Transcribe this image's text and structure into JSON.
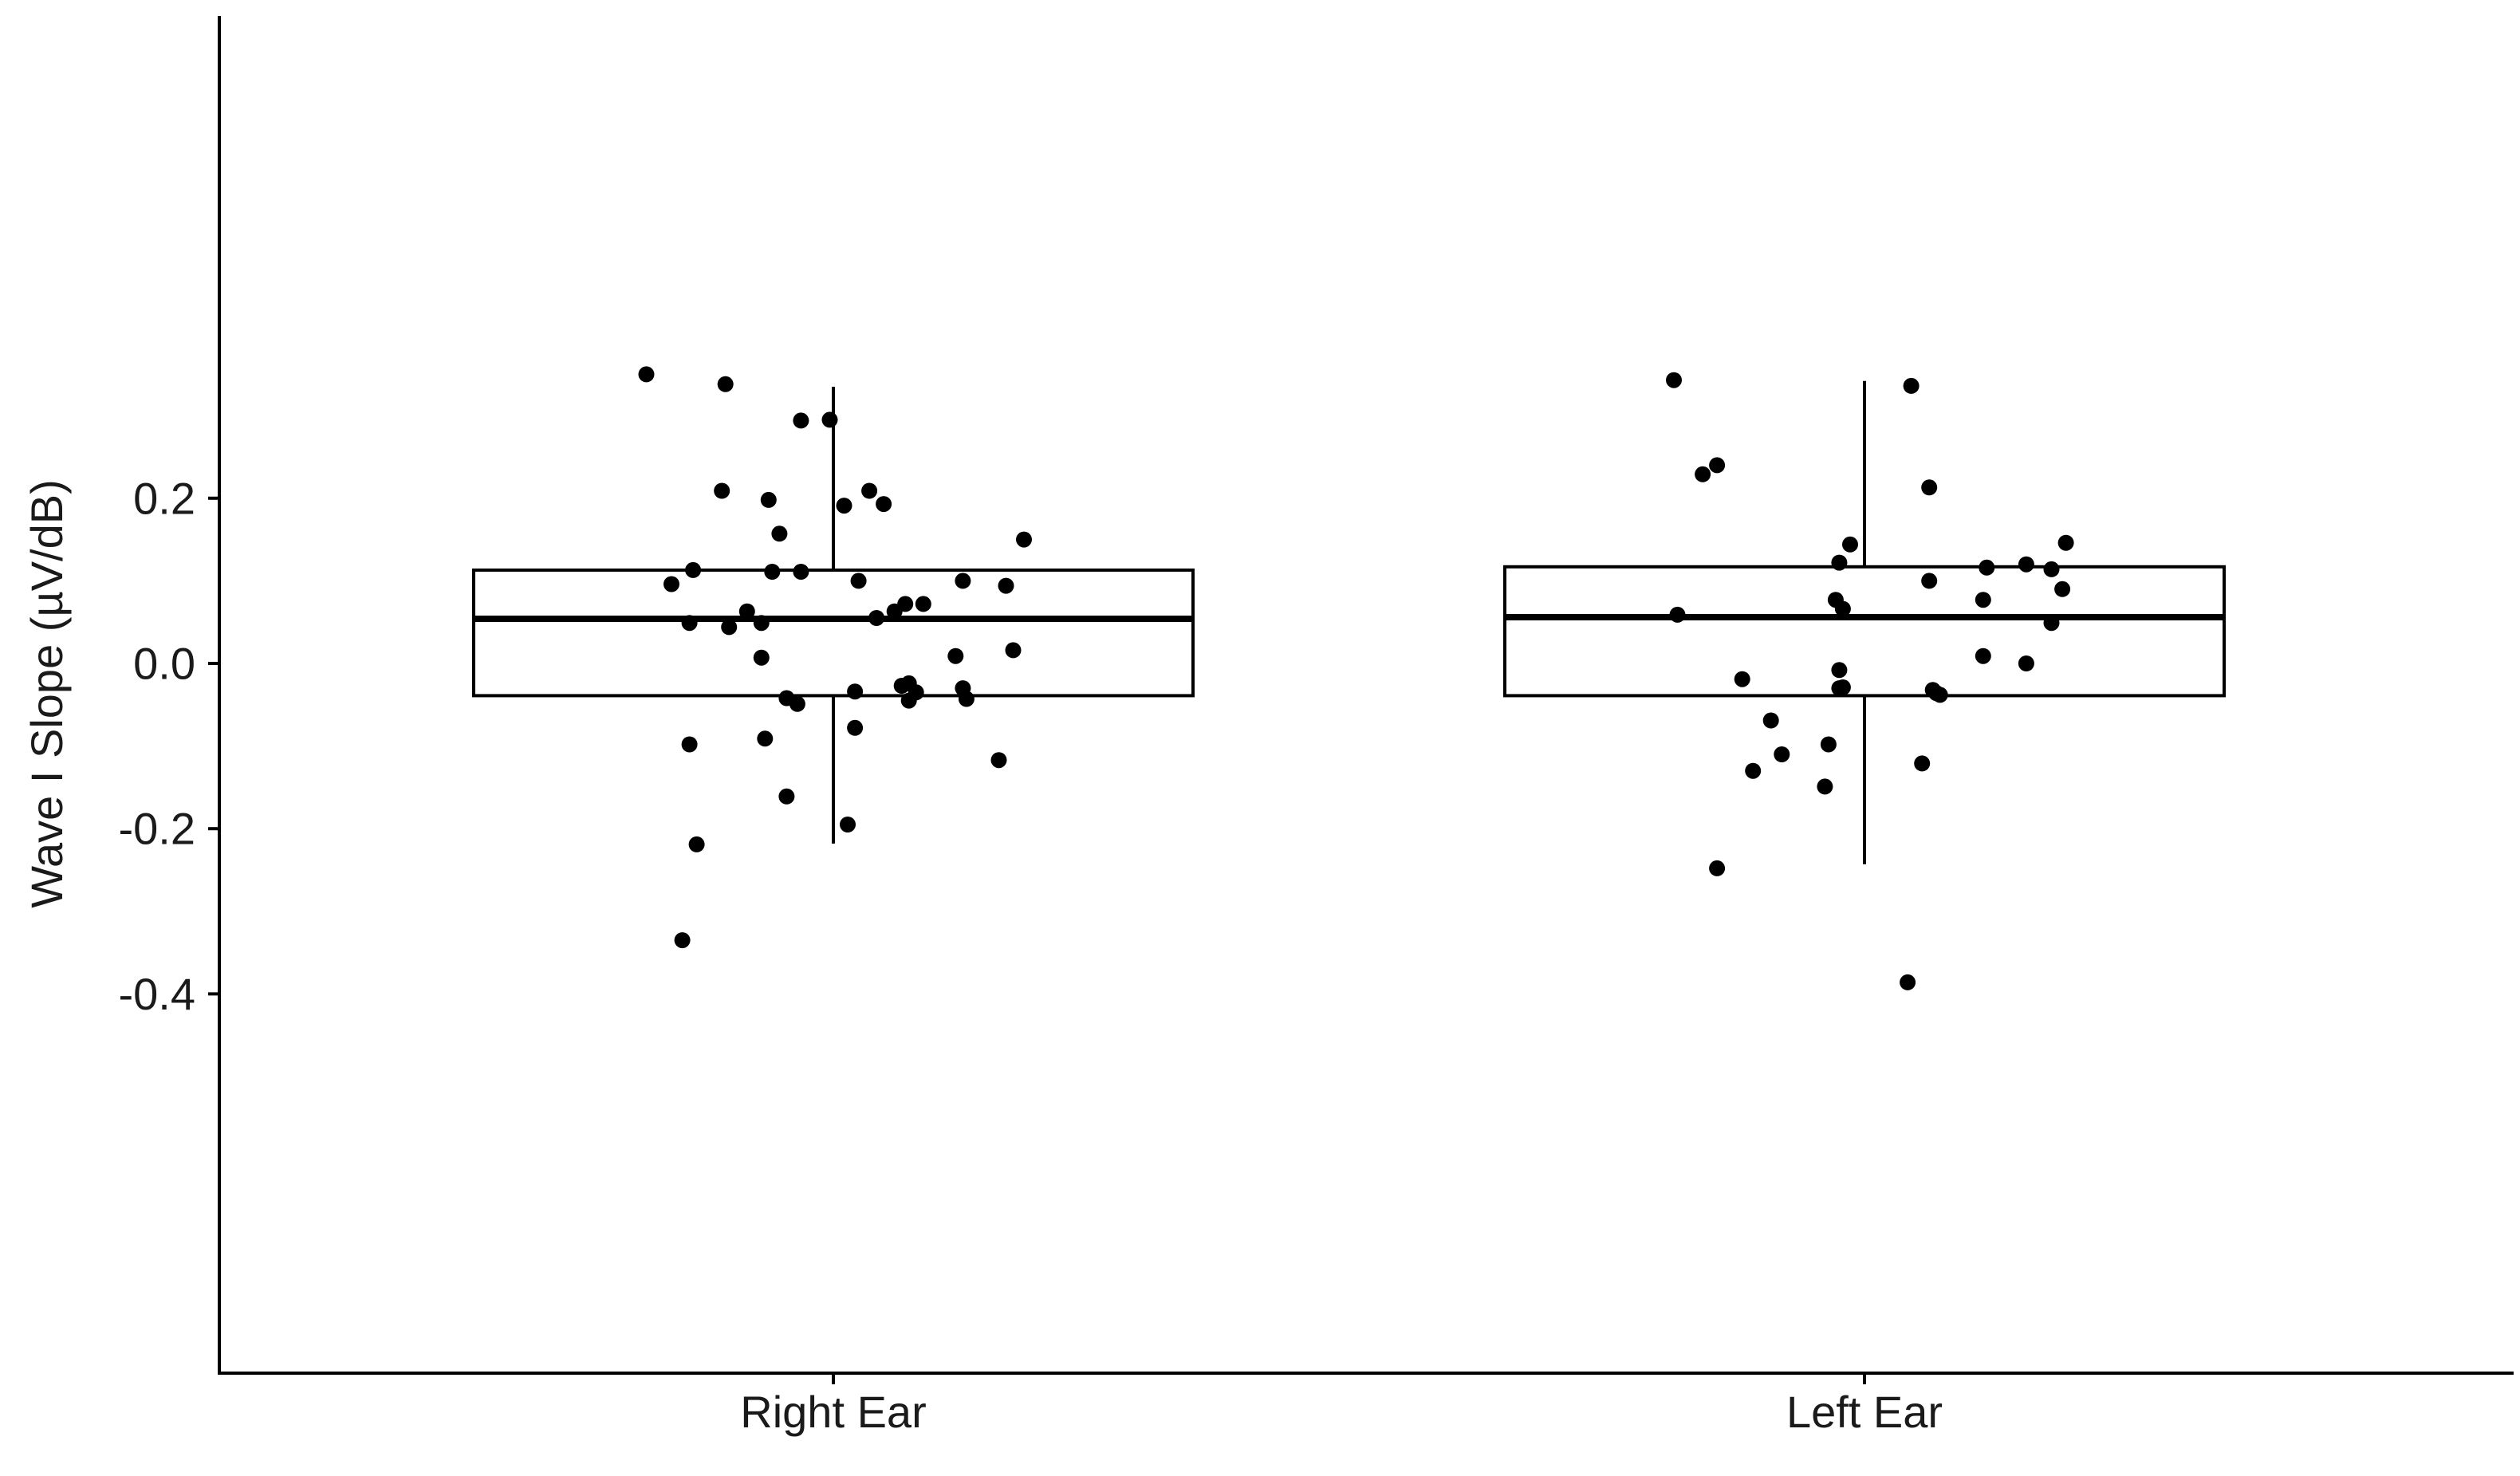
{
  "chart_data": {
    "type": "box",
    "title": "",
    "xlabel": "",
    "ylabel": "Wave I Slope (µV/dB)",
    "categories": [
      "Right Ear",
      "Left Ear"
    ],
    "ylim": [
      -0.425,
      0.385
    ],
    "yticks": [
      {
        "value": 0.2,
        "label": "0.2"
      },
      {
        "value": 0.0,
        "label": "0.0"
      },
      {
        "value": -0.2,
        "label": "-0.2"
      },
      {
        "value": -0.4,
        "label": "-0.4"
      }
    ],
    "grid": false,
    "legend": "none",
    "colors": {
      "points": "#000000",
      "box": "#000000",
      "background": "#ffffff"
    },
    "boxes": [
      {
        "category": "Right Ear",
        "whisker_low": -0.218,
        "q1": -0.039,
        "median": 0.054,
        "q3": 0.113,
        "whisker_high": 0.335
      },
      {
        "category": "Left Ear",
        "whisker_low": -0.243,
        "q1": -0.039,
        "median": 0.056,
        "q3": 0.117,
        "whisker_high": 0.342
      }
    ],
    "series": [
      {
        "category": "Right Ear",
        "points": [
          {
            "jitter": -0.52,
            "y": 0.35
          },
          {
            "jitter": -0.3,
            "y": 0.338
          },
          {
            "jitter": -0.09,
            "y": 0.294
          },
          {
            "jitter": -0.01,
            "y": 0.295
          },
          {
            "jitter": -0.31,
            "y": 0.209
          },
          {
            "jitter": -0.18,
            "y": 0.198
          },
          {
            "jitter": 0.03,
            "y": 0.191
          },
          {
            "jitter": 0.1,
            "y": 0.209
          },
          {
            "jitter": 0.14,
            "y": 0.193
          },
          {
            "jitter": -0.15,
            "y": 0.157
          },
          {
            "jitter": 0.53,
            "y": 0.15
          },
          {
            "jitter": -0.39,
            "y": 0.113
          },
          {
            "jitter": -0.17,
            "y": 0.111
          },
          {
            "jitter": -0.09,
            "y": 0.111
          },
          {
            "jitter": 0.07,
            "y": 0.1
          },
          {
            "jitter": 0.36,
            "y": 0.1
          },
          {
            "jitter": -0.45,
            "y": 0.096
          },
          {
            "jitter": 0.48,
            "y": 0.094
          },
          {
            "jitter": 0.2,
            "y": 0.072
          },
          {
            "jitter": 0.25,
            "y": 0.072
          },
          {
            "jitter": 0.17,
            "y": 0.063
          },
          {
            "jitter": -0.24,
            "y": 0.063
          },
          {
            "jitter": 0.12,
            "y": 0.055
          },
          {
            "jitter": -0.4,
            "y": 0.049
          },
          {
            "jitter": -0.2,
            "y": 0.049
          },
          {
            "jitter": -0.29,
            "y": 0.044
          },
          {
            "jitter": 0.5,
            "y": 0.016
          },
          {
            "jitter": 0.34,
            "y": 0.009
          },
          {
            "jitter": -0.2,
            "y": 0.007
          },
          {
            "jitter": 0.21,
            "y": -0.024
          },
          {
            "jitter": 0.19,
            "y": -0.027
          },
          {
            "jitter": 0.36,
            "y": -0.03
          },
          {
            "jitter": 0.06,
            "y": -0.034
          },
          {
            "jitter": 0.23,
            "y": -0.035
          },
          {
            "jitter": 0.37,
            "y": -0.043
          },
          {
            "jitter": 0.21,
            "y": -0.045
          },
          {
            "jitter": -0.13,
            "y": -0.042
          },
          {
            "jitter": -0.1,
            "y": -0.049
          },
          {
            "jitter": 0.06,
            "y": -0.078
          },
          {
            "jitter": -0.19,
            "y": -0.091
          },
          {
            "jitter": -0.4,
            "y": -0.098
          },
          {
            "jitter": 0.46,
            "y": -0.117
          },
          {
            "jitter": -0.13,
            "y": -0.161
          },
          {
            "jitter": 0.04,
            "y": -0.195
          },
          {
            "jitter": -0.38,
            "y": -0.219
          },
          {
            "jitter": -0.42,
            "y": -0.335
          }
        ]
      },
      {
        "category": "Left Ear",
        "points": [
          {
            "jitter": -0.53,
            "y": 0.343
          },
          {
            "jitter": 0.13,
            "y": 0.336
          },
          {
            "jitter": -0.41,
            "y": 0.24
          },
          {
            "jitter": -0.45,
            "y": 0.229
          },
          {
            "jitter": 0.18,
            "y": 0.213
          },
          {
            "jitter": -0.04,
            "y": 0.144
          },
          {
            "jitter": 0.56,
            "y": 0.146
          },
          {
            "jitter": -0.07,
            "y": 0.122
          },
          {
            "jitter": 0.45,
            "y": 0.12
          },
          {
            "jitter": 0.34,
            "y": 0.116
          },
          {
            "jitter": 0.52,
            "y": 0.114
          },
          {
            "jitter": 0.18,
            "y": 0.1
          },
          {
            "jitter": 0.55,
            "y": 0.09
          },
          {
            "jitter": -0.08,
            "y": 0.077
          },
          {
            "jitter": 0.33,
            "y": 0.077
          },
          {
            "jitter": -0.06,
            "y": 0.066
          },
          {
            "jitter": -0.52,
            "y": 0.059
          },
          {
            "jitter": 0.52,
            "y": 0.049
          },
          {
            "jitter": 0.33,
            "y": 0.009
          },
          {
            "jitter": 0.45,
            "y": 0.0
          },
          {
            "jitter": -0.07,
            "y": -0.008
          },
          {
            "jitter": -0.34,
            "y": -0.019
          },
          {
            "jitter": -0.06,
            "y": -0.029
          },
          {
            "jitter": -0.07,
            "y": -0.03
          },
          {
            "jitter": 0.19,
            "y": -0.032
          },
          {
            "jitter": 0.2,
            "y": -0.036
          },
          {
            "jitter": 0.21,
            "y": -0.038
          },
          {
            "jitter": -0.26,
            "y": -0.069
          },
          {
            "jitter": -0.1,
            "y": -0.098
          },
          {
            "jitter": -0.23,
            "y": -0.11
          },
          {
            "jitter": -0.31,
            "y": -0.13
          },
          {
            "jitter": 0.16,
            "y": -0.121
          },
          {
            "jitter": -0.11,
            "y": -0.149
          },
          {
            "jitter": -0.41,
            "y": -0.248
          },
          {
            "jitter": 0.12,
            "y": -0.386
          }
        ]
      }
    ]
  }
}
